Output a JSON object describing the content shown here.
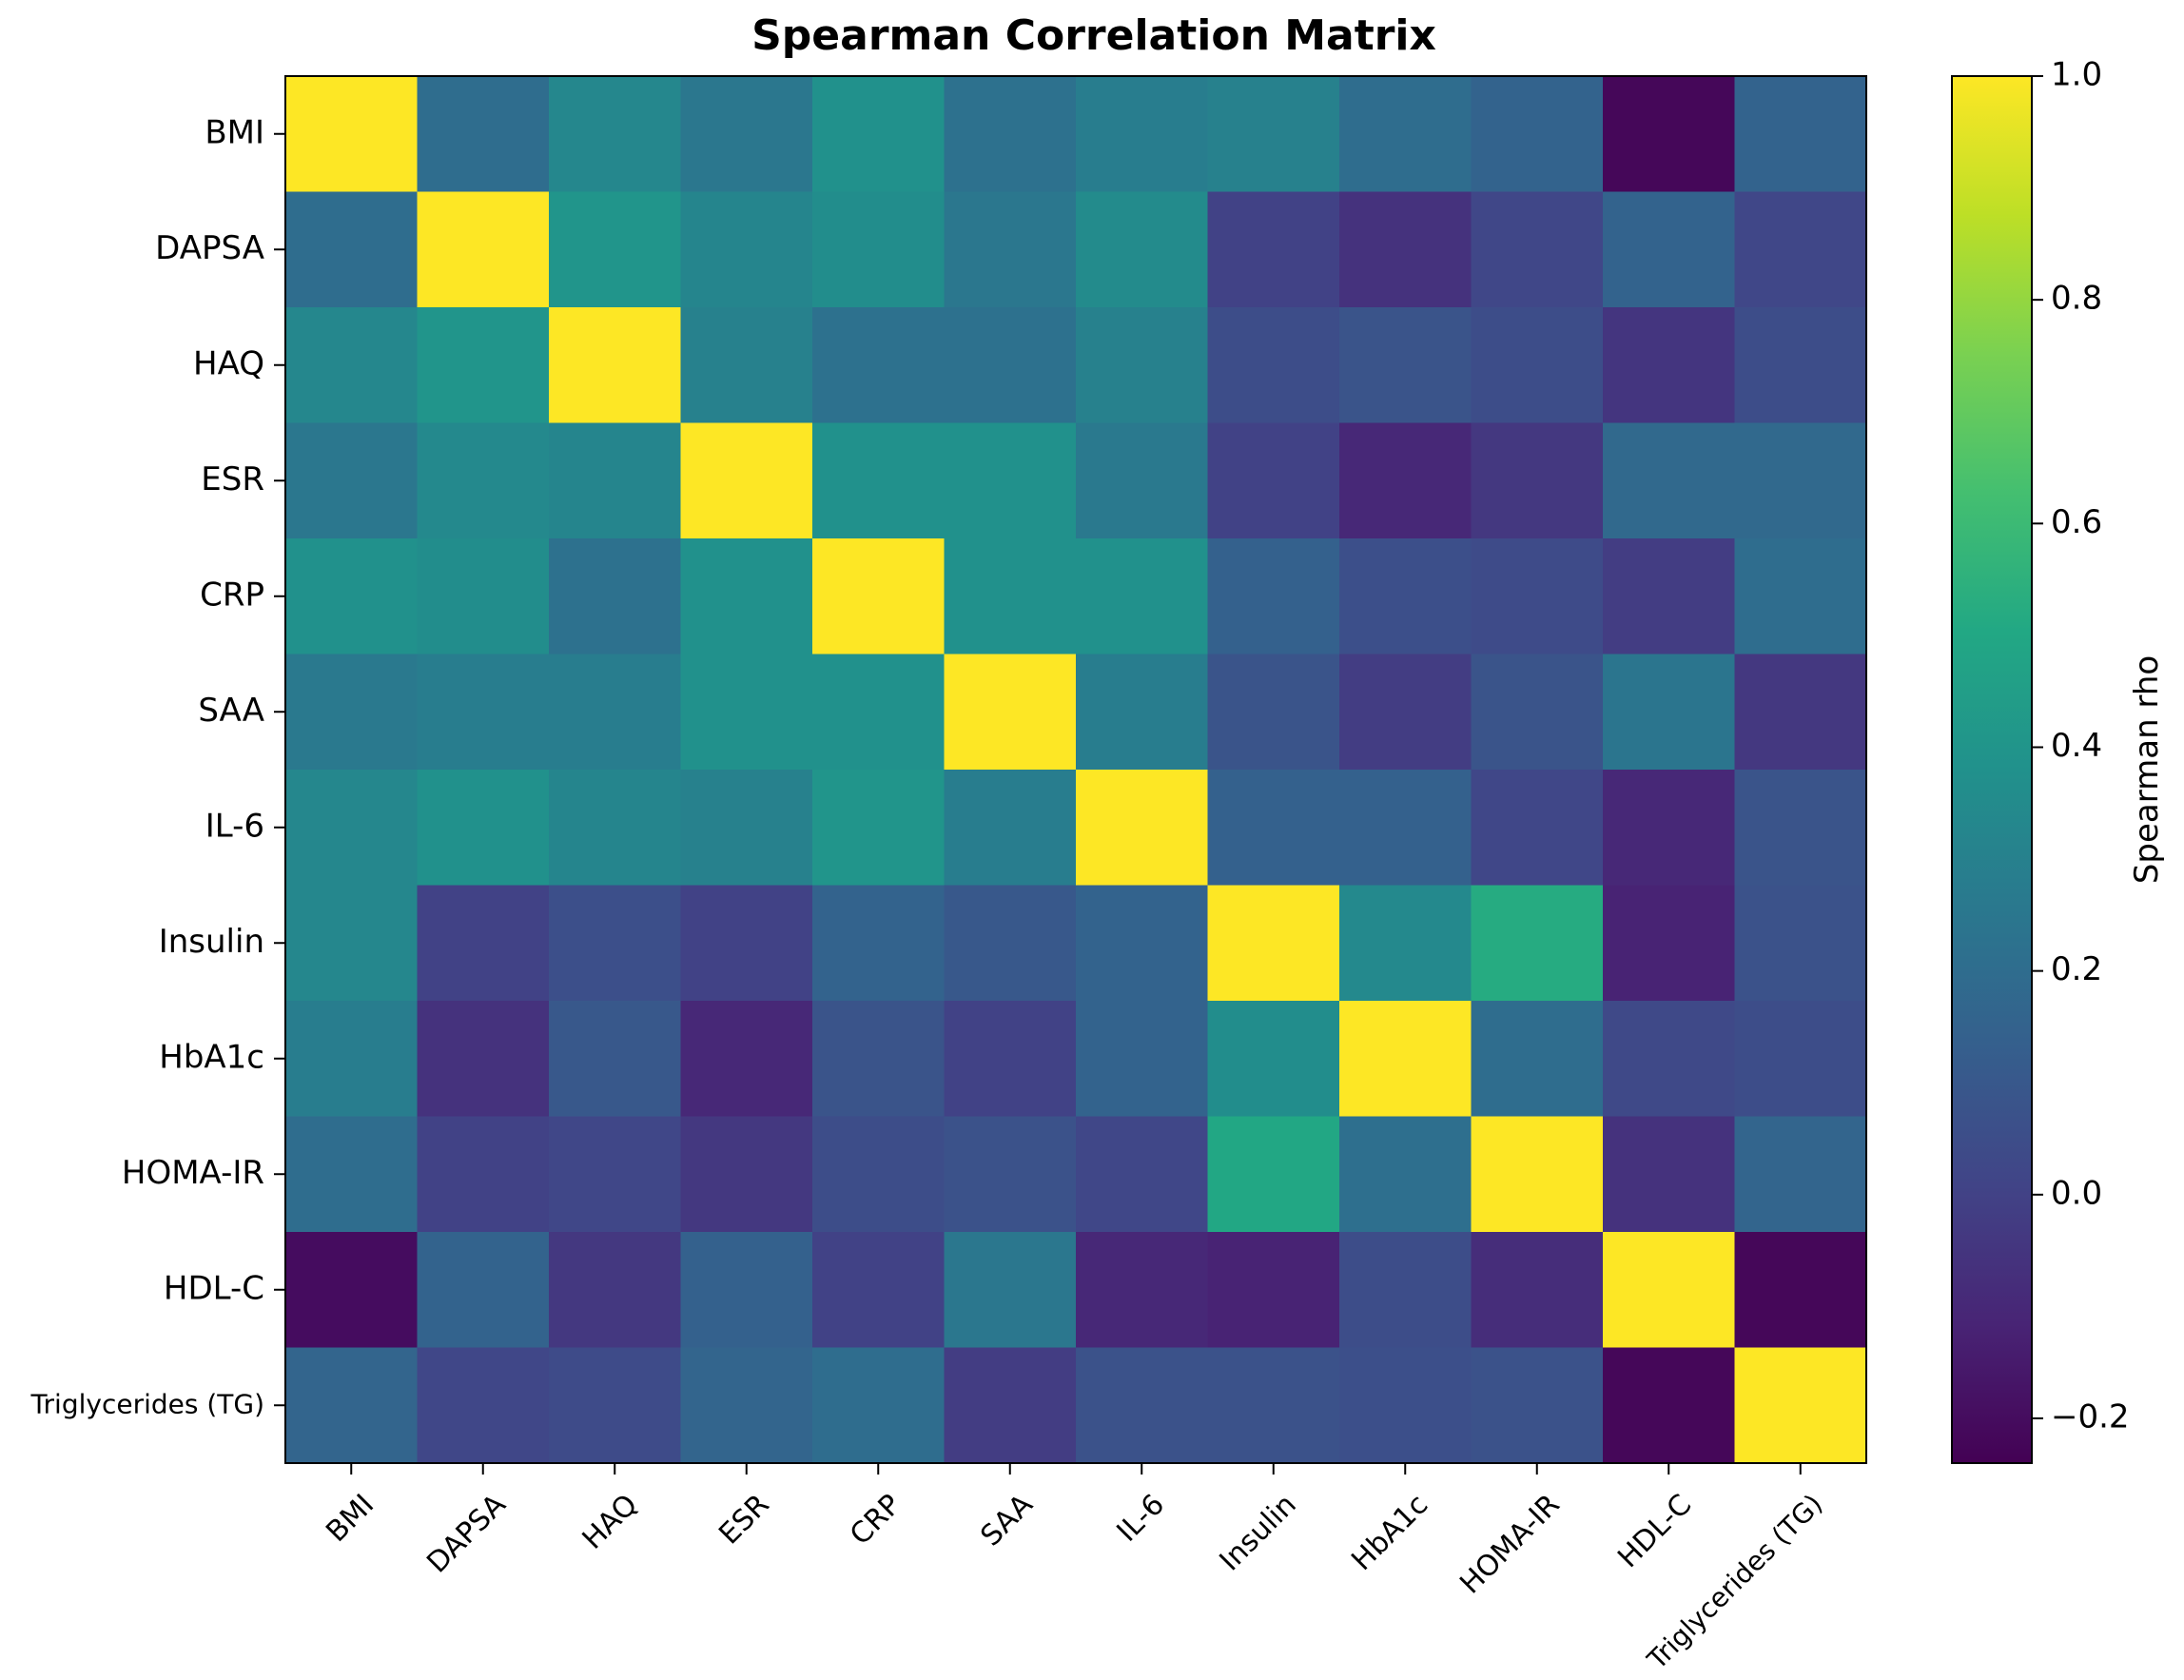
{
  "chart_data": {
    "type": "heatmap",
    "title": "Spearman Correlation Matrix",
    "xlabel": "",
    "ylabel": "",
    "labels": [
      "BMI",
      "DAPSA",
      "HAQ",
      "ESR",
      "CRP",
      "SAA",
      "IL-6",
      "Insulin",
      "HbA1c",
      "HOMA-IR",
      "HDL-C",
      "Triglycerides (TG)"
    ],
    "matrix": [
      [
        1.0,
        0.2,
        0.33,
        0.25,
        0.38,
        0.22,
        0.28,
        0.3,
        0.2,
        0.15,
        -0.22,
        0.15
      ],
      [
        0.2,
        1.0,
        0.4,
        0.32,
        0.36,
        0.25,
        0.35,
        0.0,
        -0.06,
        0.02,
        0.15,
        0.02
      ],
      [
        0.33,
        0.4,
        1.0,
        0.3,
        0.22,
        0.22,
        0.3,
        0.05,
        0.08,
        0.05,
        -0.05,
        0.05
      ],
      [
        0.25,
        0.34,
        0.32,
        1.0,
        0.38,
        0.38,
        0.26,
        0.0,
        -0.1,
        -0.04,
        0.18,
        0.18
      ],
      [
        0.38,
        0.36,
        0.22,
        0.38,
        1.0,
        0.38,
        0.38,
        0.14,
        0.06,
        0.04,
        -0.02,
        0.2
      ],
      [
        0.26,
        0.28,
        0.28,
        0.38,
        0.38,
        1.0,
        0.28,
        0.08,
        -0.02,
        0.08,
        0.24,
        -0.04
      ],
      [
        0.33,
        0.38,
        0.32,
        0.3,
        0.4,
        0.28,
        1.0,
        0.14,
        0.14,
        0.02,
        -0.1,
        0.08
      ],
      [
        0.33,
        0.0,
        0.06,
        0.0,
        0.15,
        0.1,
        0.15,
        1.0,
        0.34,
        0.52,
        -0.12,
        0.07
      ],
      [
        0.28,
        -0.06,
        0.1,
        -0.1,
        0.08,
        0.0,
        0.15,
        0.36,
        1.0,
        0.2,
        0.03,
        0.05
      ],
      [
        0.2,
        0.0,
        0.02,
        -0.04,
        0.05,
        0.07,
        0.02,
        0.5,
        0.21,
        1.0,
        -0.06,
        0.16
      ],
      [
        -0.2,
        0.15,
        -0.04,
        0.14,
        0.0,
        0.25,
        -0.1,
        -0.12,
        0.05,
        -0.08,
        1.0,
        -0.22
      ],
      [
        0.16,
        0.02,
        0.04,
        0.16,
        0.2,
        -0.02,
        0.07,
        0.07,
        0.06,
        0.07,
        -0.22,
        1.0
      ]
    ],
    "colorscale": "viridis",
    "zlim": [
      -0.24,
      1.0
    ],
    "colorbar": {
      "label": "Spearman rho",
      "ticks": [
        -0.2,
        0.0,
        0.2,
        0.4,
        0.6,
        0.8,
        1.0
      ],
      "tick_labels": [
        "−0.2",
        "0.0",
        "0.2",
        "0.4",
        "0.6",
        "0.8",
        "1.0"
      ]
    },
    "grid": false,
    "legend": "colorbar-right"
  }
}
